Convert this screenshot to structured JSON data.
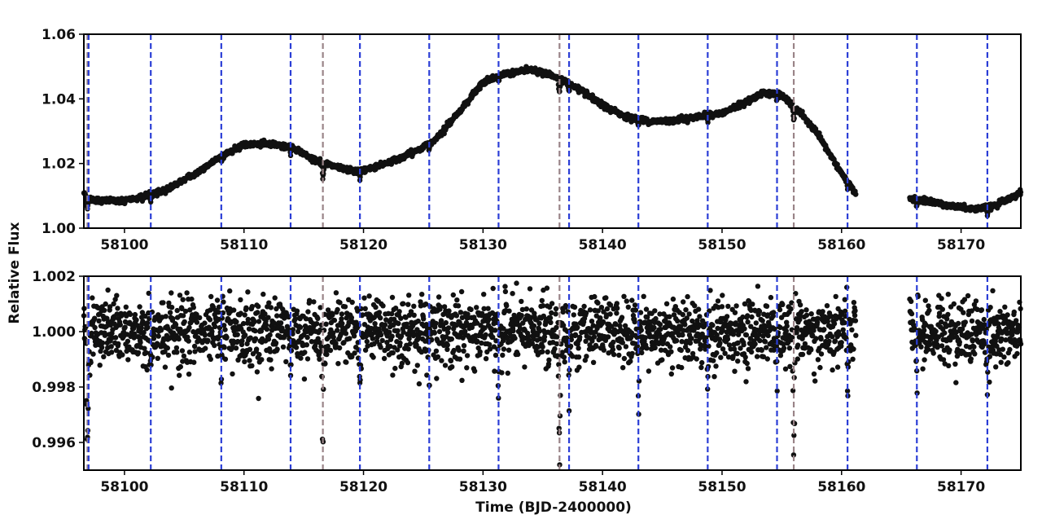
{
  "figure": {
    "xlabel": "Time (BJD-2400000)",
    "ylabel": "Relative Flux"
  },
  "colors": {
    "points": "#111111",
    "transit_line_b": "#2b3ed6",
    "transit_line_c": "#9a8488",
    "axes": "#000000"
  },
  "chart_data": [
    {
      "type": "scatter",
      "panel": "top",
      "description_of_content": "raw light curve",
      "xlim": [
        58096.6,
        58175
      ],
      "ylim": [
        1.0,
        1.06
      ],
      "xticks": [
        "58100",
        "58110",
        "58120",
        "58130",
        "58140",
        "58150",
        "58160",
        "58170"
      ],
      "yticks": [
        "1.00",
        "1.02",
        "1.04",
        "1.06"
      ],
      "grid": false,
      "gap": [
        58161.2,
        58165.7
      ],
      "trend": {
        "x": [
          58096.6,
          58097.2,
          58098,
          58100,
          58103,
          58106,
          58108,
          58110,
          58112,
          58114,
          58116,
          58118,
          58119.5,
          58121,
          58123,
          58125,
          58126,
          58128,
          58130,
          58132,
          58134,
          58136,
          58138,
          58140,
          58142,
          58144,
          58146,
          58148,
          58150,
          58152,
          58153.5,
          58155,
          58156.5,
          58158,
          58160,
          58161.2,
          58165.7,
          58167,
          58169,
          58171,
          58172.5,
          58174,
          58175
        ],
        "y": [
          1.011,
          1.009,
          1.0085,
          1.0085,
          1.011,
          1.017,
          1.022,
          1.026,
          1.026,
          1.025,
          1.021,
          1.0185,
          1.0175,
          1.019,
          1.0215,
          1.025,
          1.0275,
          1.036,
          1.045,
          1.048,
          1.049,
          1.047,
          1.043,
          1.038,
          1.0345,
          1.033,
          1.0333,
          1.0345,
          1.0355,
          1.039,
          1.042,
          1.041,
          1.036,
          1.029,
          1.017,
          1.0105,
          1.009,
          1.0085,
          1.007,
          1.006,
          1.0065,
          1.009,
          1.011
        ]
      }
    },
    {
      "type": "scatter",
      "panel": "bottom",
      "description_of_content": "detrended light curve",
      "xlim": [
        58096.6,
        58175
      ],
      "ylim": [
        0.995,
        1.002
      ],
      "xticks": [
        "58100",
        "58110",
        "58120",
        "58130",
        "58140",
        "58150",
        "58160",
        "58170"
      ],
      "yticks": [
        "0.996",
        "0.998",
        "1.000",
        "1.002"
      ],
      "grid": false,
      "gap": [
        58161.2,
        58165.7
      ],
      "baseline": 1.0,
      "scatter": 0.0006,
      "transits_b": {
        "times": [
          58097.0,
          58102.2,
          58108.1,
          58113.9,
          58119.7,
          58125.5,
          58131.3,
          58137.2,
          58143.0,
          58148.8,
          58154.6,
          58160.5,
          58166.3,
          58172.2
        ],
        "depth": 0.0022
      },
      "transits_c": {
        "times": [
          58096.9,
          58116.6,
          58136.4,
          58156.0
        ],
        "depth": 0.0045
      }
    }
  ],
  "transit_markers": {
    "b_times": [
      58097.0,
      58102.2,
      58108.1,
      58113.9,
      58119.7,
      58125.5,
      58131.3,
      58137.2,
      58143.0,
      58148.8,
      58154.6,
      58160.5,
      58166.3,
      58172.2
    ],
    "c_times": [
      58096.9,
      58116.6,
      58136.4,
      58156.0
    ]
  }
}
